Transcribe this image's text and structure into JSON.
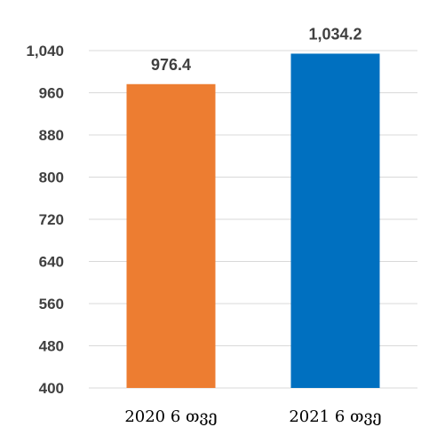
{
  "chart_data": {
    "type": "bar",
    "categories": [
      "2020 6 თვე",
      "2021 6 თვე"
    ],
    "values": [
      976.4,
      1034.2
    ],
    "value_labels": [
      "976.4",
      "1,034.2"
    ],
    "bar_colors": [
      "#ED7D31",
      "#0070C0"
    ],
    "ylim": [
      400,
      1040
    ],
    "yticks": [
      400,
      480,
      560,
      640,
      720,
      800,
      880,
      960,
      1040
    ],
    "ytick_labels": [
      "400",
      "480",
      "560",
      "640",
      "720",
      "800",
      "880",
      "960",
      "1,040"
    ],
    "title": "",
    "xlabel": "",
    "ylabel": "",
    "grid": true,
    "legend": "none"
  }
}
